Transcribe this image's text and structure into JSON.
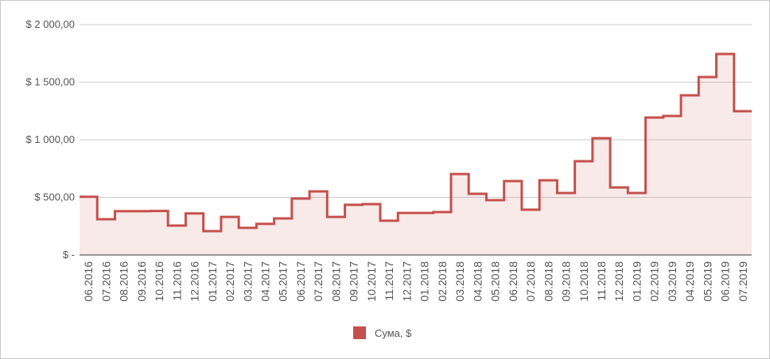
{
  "chart_data": {
    "type": "step-area",
    "categories": [
      "06.2016",
      "07.2016",
      "08.2016",
      "09.2016",
      "10.2016",
      "11.2016",
      "12.2016",
      "01.2017",
      "02.2017",
      "03.2017",
      "04.2017",
      "05.2017",
      "06.2017",
      "07.2017",
      "08.2017",
      "09.2017",
      "10.2017",
      "11.2017",
      "12.2017",
      "01.2018",
      "02.2018",
      "03.2018",
      "04.2018",
      "05.2018",
      "06.2018",
      "07.2018",
      "08.2018",
      "09.2018",
      "10.2018",
      "11.2018",
      "12.2018",
      "01.2019",
      "02.2019",
      "03.2019",
      "04.2019",
      "05.2019",
      "06.2019",
      "07.2019"
    ],
    "series": [
      {
        "name": "Сума, $",
        "color": "#c5504c",
        "values": [
          505,
          310,
          380,
          380,
          382,
          255,
          360,
          207,
          330,
          235,
          270,
          317,
          490,
          552,
          330,
          435,
          441,
          297,
          365,
          365,
          372,
          703,
          531,
          476,
          641,
          393,
          648,
          538,
          814,
          1014,
          586,
          538,
          1193,
          1207,
          1386,
          1545,
          1745,
          1248
        ]
      }
    ],
    "ylim": [
      0,
      2000
    ],
    "yticks": [
      {
        "value": 0,
        "label": "$ -"
      },
      {
        "value": 500,
        "label": "$ 500,00"
      },
      {
        "value": 1000,
        "label": "$ 1 000,00"
      },
      {
        "value": 1500,
        "label": "$ 1 500,00"
      },
      {
        "value": 2000,
        "label": "$ 2 000,00"
      }
    ],
    "grid": true
  }
}
